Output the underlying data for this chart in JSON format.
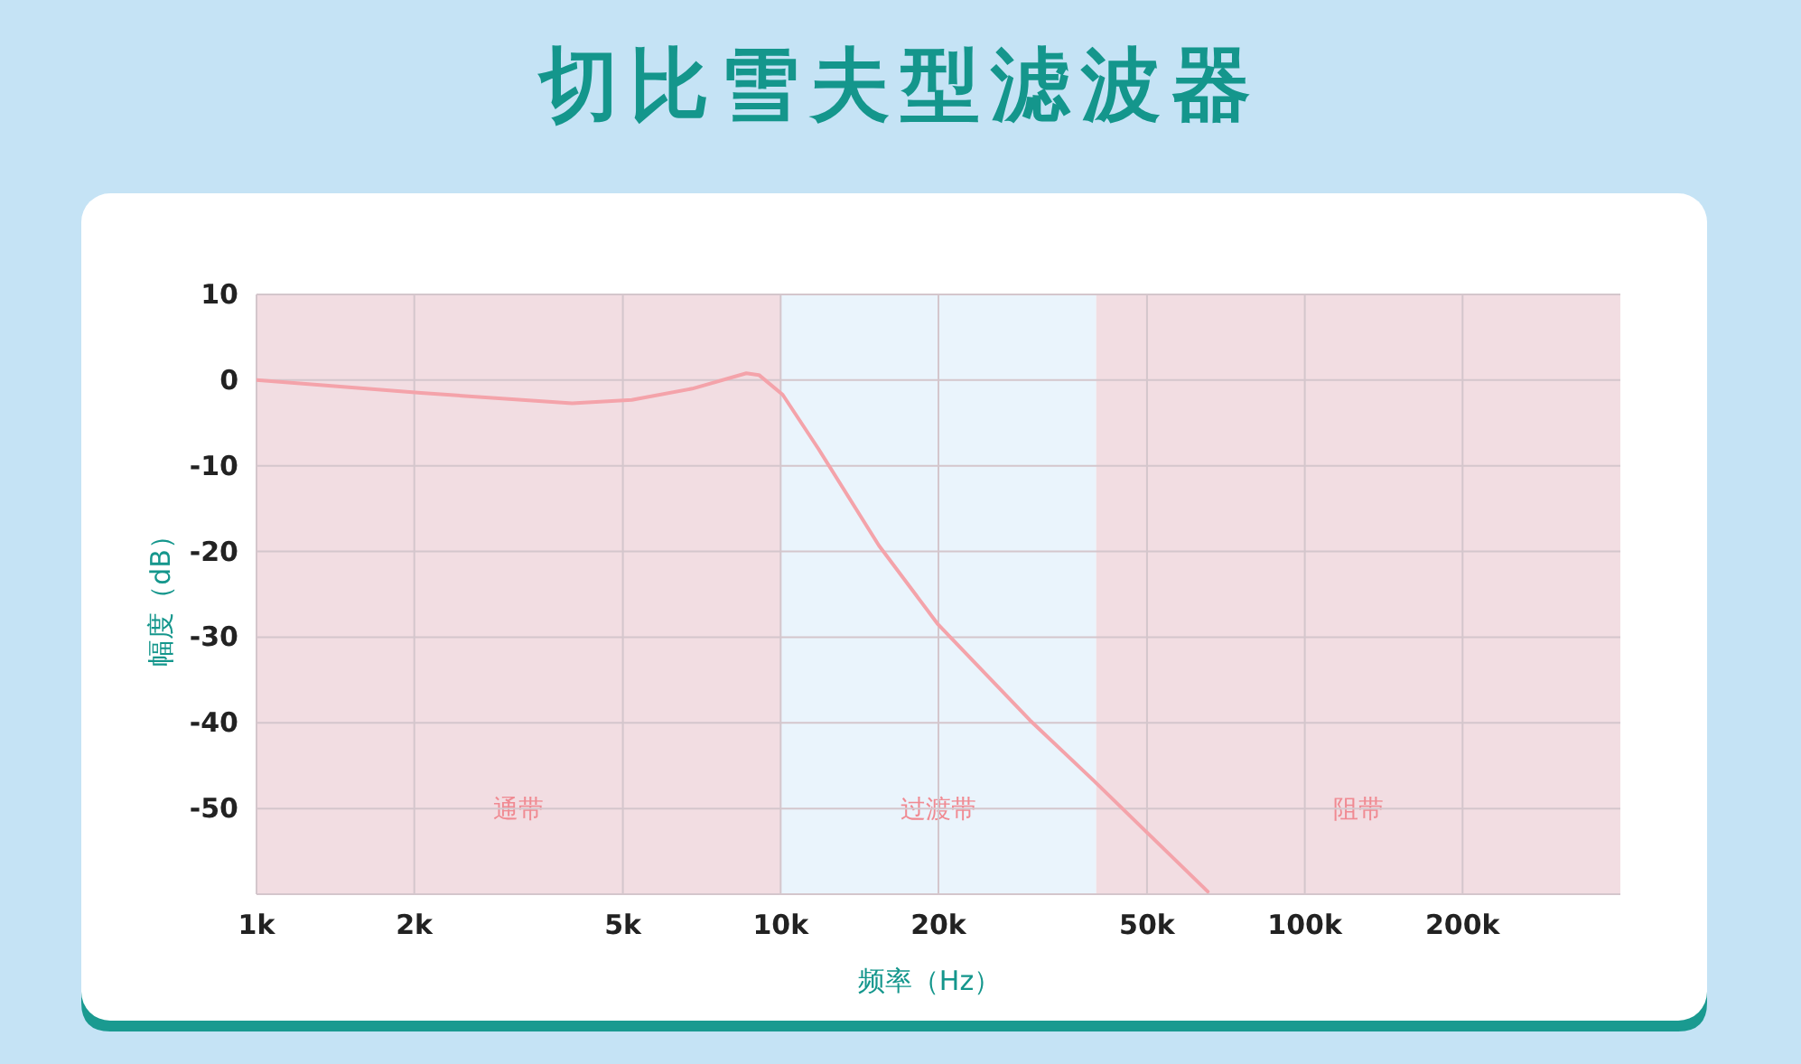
{
  "chart_data": {
    "type": "line",
    "title": "切比雪夫型滤波器",
    "xlabel": "频率（Hz）",
    "ylabel": "幅度（dB）",
    "log": "x",
    "x": [
      1000,
      2060,
      4000,
      5200,
      6780,
      8600,
      9090,
      10090,
      11800,
      15400,
      19900,
      29900,
      39500,
      65300
    ],
    "series": [
      {
        "color": "#f4a3aa",
        "values": [
          0,
          -1.5,
          -2.7,
          -2.3,
          -1.0,
          0.8,
          0.6,
          -1.7,
          -8.0,
          -19.3,
          -28.4,
          -39.7,
          -46.7,
          -59.7
        ]
      }
    ],
    "xlim": [
      1000,
      400000
    ],
    "ylim": [
      -60,
      10
    ],
    "xticks": [
      {
        "value": 1000,
        "label": "1k"
      },
      {
        "value": 2000,
        "label": "2k"
      },
      {
        "value": 5000,
        "label": "5k"
      },
      {
        "value": 10000,
        "label": "10k"
      },
      {
        "value": 20000,
        "label": "20k"
      },
      {
        "value": 50000,
        "label": "50k"
      },
      {
        "value": 100000,
        "label": "100k"
      },
      {
        "value": 200000,
        "label": "200k"
      }
    ],
    "yticks": [
      10,
      0,
      -10,
      -20,
      -30,
      -40,
      -50,
      {
        "value": -60,
        "label": null
      }
    ],
    "grid": true,
    "bands": [
      {
        "axis": "x",
        "from": 1000,
        "to": 10000,
        "label": "通带",
        "color": "#f2dde2"
      },
      {
        "axis": "x",
        "from": 10000,
        "to": 40000,
        "label": "过渡带",
        "color": "#eaf4fc"
      },
      {
        "axis": "x",
        "from": 40000,
        "to": 400000,
        "label": "阻带",
        "color": "#f2dde2"
      }
    ]
  }
}
